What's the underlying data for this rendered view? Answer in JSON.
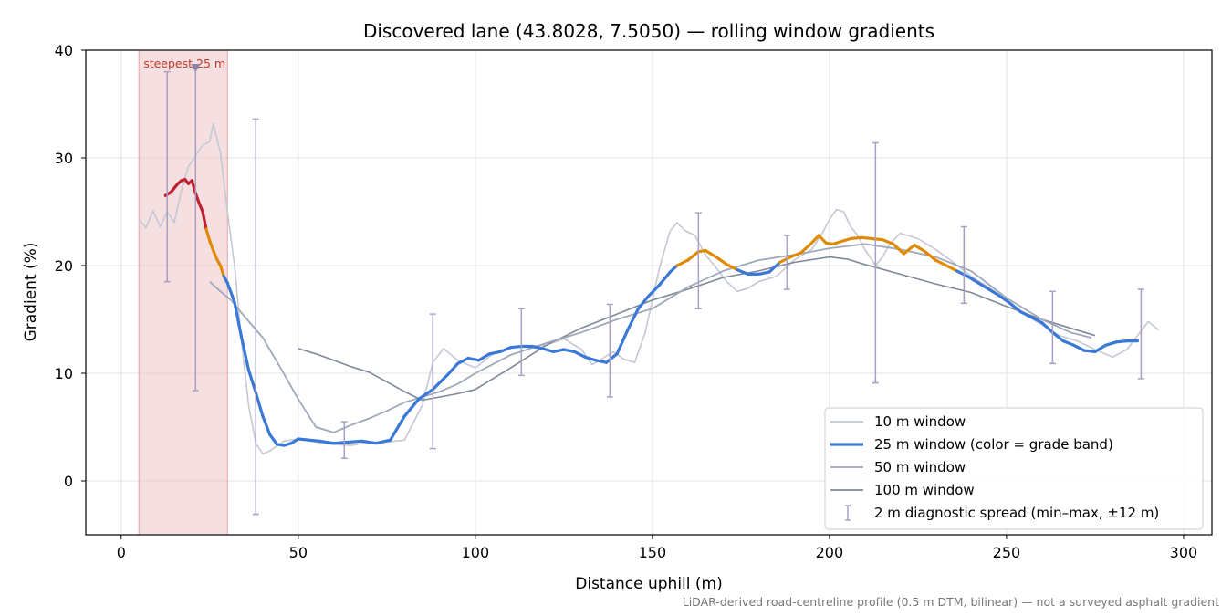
{
  "chart_data": {
    "type": "line",
    "title": "Discovered lane (43.8028, 7.5050) — rolling window gradients",
    "xlabel": "Distance uphill (m)",
    "ylabel": "Gradient (%)",
    "xlim": [
      -10,
      308
    ],
    "ylim": [
      -5,
      40
    ],
    "xticks": [
      0,
      50,
      100,
      150,
      200,
      250,
      300
    ],
    "yticks": [
      0,
      10,
      20,
      30,
      40
    ],
    "grid": true,
    "legend_position": "lower-right",
    "footnote": "LiDAR-derived road-centreline profile (0.5 m DTM, bilinear) — not a surveyed asphalt gradient",
    "annotation": {
      "label": "steepest 25 m",
      "x_start": 5,
      "x_end": 30,
      "marker_x": 21,
      "marker_y": 38.3
    },
    "grade_band_colors": {
      "steep": "#c0202f",
      "hard": "#e08a00",
      "moderate": "#3a78d8"
    },
    "legend": [
      {
        "label": "10 m window",
        "color": "#c3c9d3",
        "kind": "line"
      },
      {
        "label": "25 m window (color = grade band)",
        "color": "#3a78d8",
        "kind": "thick-line"
      },
      {
        "label": "50 m window",
        "color": "#9fa8ba",
        "kind": "line"
      },
      {
        "label": "100 m window",
        "color": "#808898",
        "kind": "line"
      },
      {
        "label": "2 m diagnostic spread (min–max, ±12 m)",
        "color": "#a7a0c4",
        "kind": "errorbar"
      }
    ],
    "series": [
      {
        "name": "10 m window",
        "color": "#c3c9d3",
        "x": [
          5,
          7,
          9,
          11,
          13,
          15,
          17,
          19,
          21,
          23,
          25,
          26,
          28,
          30,
          32,
          34,
          36,
          38,
          40,
          42,
          46,
          50,
          55,
          60,
          65,
          70,
          75,
          80,
          85,
          88,
          91,
          95,
          100,
          105,
          110,
          115,
          120,
          125,
          130,
          133,
          136,
          139,
          142,
          145,
          148,
          150,
          152,
          155,
          157,
          159,
          162,
          165,
          168,
          171,
          174,
          177,
          180,
          185,
          190,
          195,
          198,
          200,
          202,
          204,
          206,
          208,
          210,
          212,
          213,
          215,
          217,
          220,
          225,
          230,
          235,
          240,
          245,
          250,
          255,
          260,
          265,
          270,
          275,
          280,
          284,
          287,
          290,
          293
        ],
        "y": [
          24.3,
          23.5,
          25.1,
          23.6,
          25.0,
          24.0,
          27.0,
          29.2,
          30.2,
          31.2,
          31.5,
          33.2,
          30.5,
          25.0,
          20.0,
          13.0,
          7.0,
          3.5,
          2.5,
          2.8,
          3.7,
          3.9,
          3.6,
          3.4,
          3.3,
          3.6,
          3.6,
          3.8,
          7.0,
          11.0,
          12.3,
          11.2,
          10.5,
          11.8,
          12.4,
          12.5,
          12.6,
          13.2,
          12.2,
          10.8,
          11.4,
          12.0,
          11.3,
          11.0,
          13.8,
          16.8,
          19.8,
          23.2,
          24.0,
          23.3,
          22.8,
          21.0,
          19.8,
          18.5,
          17.6,
          17.9,
          18.5,
          19.0,
          20.5,
          21.5,
          23.0,
          24.3,
          25.2,
          25.0,
          23.6,
          22.8,
          21.5,
          20.5,
          20.0,
          20.8,
          22.0,
          23.0,
          22.5,
          21.5,
          20.3,
          19.0,
          18.0,
          16.8,
          15.5,
          14.5,
          13.5,
          13.0,
          12.2,
          11.5,
          12.2,
          13.5,
          14.8,
          14.0
        ]
      },
      {
        "name": "25 m window",
        "x": [
          12.5,
          14,
          16,
          17,
          18,
          19,
          20,
          21,
          22,
          23,
          24,
          25,
          26,
          27,
          28,
          29,
          30,
          32,
          34,
          36,
          38,
          40,
          42,
          44,
          46,
          48,
          50,
          53,
          56,
          60,
          64,
          68,
          72,
          76,
          80,
          84,
          88,
          92,
          95,
          98,
          101,
          104,
          107,
          110,
          113,
          116,
          119,
          122,
          125,
          128,
          131,
          134,
          137,
          140,
          143,
          146,
          149,
          152,
          155,
          157,
          160,
          163,
          165,
          168,
          171,
          174,
          177,
          180,
          183,
          186,
          189,
          192,
          195,
          197,
          199,
          201,
          203,
          206,
          209,
          212,
          215,
          218,
          221,
          224,
          227,
          230,
          233,
          236,
          239,
          242,
          245,
          248,
          251,
          254,
          257,
          260,
          263,
          266,
          269,
          272,
          275,
          278,
          281,
          284,
          287
        ],
        "y": [
          26.5,
          26.8,
          27.6,
          27.9,
          28.0,
          27.6,
          27.9,
          26.7,
          25.8,
          25.0,
          23.4,
          22.3,
          21.4,
          20.6,
          20.0,
          19.0,
          18.4,
          16.6,
          13.3,
          10.3,
          8.2,
          6.0,
          4.3,
          3.4,
          3.3,
          3.5,
          3.9,
          3.8,
          3.7,
          3.5,
          3.6,
          3.7,
          3.5,
          3.8,
          6.0,
          7.6,
          8.5,
          9.8,
          10.9,
          11.4,
          11.2,
          11.8,
          12.0,
          12.4,
          12.5,
          12.5,
          12.3,
          12.0,
          12.2,
          12.0,
          11.5,
          11.2,
          11.0,
          11.8,
          14.0,
          16.0,
          17.2,
          18.2,
          19.4,
          20.0,
          20.5,
          21.3,
          21.4,
          20.8,
          20.1,
          19.6,
          19.2,
          19.2,
          19.4,
          20.3,
          20.8,
          21.2,
          22.1,
          22.8,
          22.1,
          22.0,
          22.2,
          22.5,
          22.6,
          22.5,
          22.4,
          22.0,
          21.1,
          21.9,
          21.3,
          20.5,
          20.0,
          19.5,
          19.0,
          18.4,
          17.8,
          17.2,
          16.5,
          15.7,
          15.2,
          14.7,
          13.8,
          13.0,
          12.6,
          12.1,
          12.0,
          12.6,
          12.9,
          13.0,
          13.0
        ],
        "bands": [
          "steep",
          "steep",
          "steep",
          "steep",
          "steep",
          "steep",
          "steep",
          "steep",
          "steep",
          "steep",
          "hard",
          "hard",
          "hard",
          "hard",
          "hard",
          "moderate",
          "moderate",
          "moderate",
          "moderate",
          "moderate",
          "moderate",
          "moderate",
          "moderate",
          "moderate",
          "moderate",
          "moderate",
          "moderate",
          "moderate",
          "moderate",
          "moderate",
          "moderate",
          "moderate",
          "moderate",
          "moderate",
          "moderate",
          "moderate",
          "moderate",
          "moderate",
          "moderate",
          "moderate",
          "moderate",
          "moderate",
          "moderate",
          "moderate",
          "moderate",
          "moderate",
          "moderate",
          "moderate",
          "moderate",
          "moderate",
          "moderate",
          "moderate",
          "moderate",
          "moderate",
          "moderate",
          "moderate",
          "moderate",
          "moderate",
          "moderate",
          "hard",
          "hard",
          "hard",
          "hard",
          "hard",
          "hard",
          "moderate",
          "moderate",
          "moderate",
          "moderate",
          "hard",
          "hard",
          "hard",
          "hard",
          "hard",
          "hard",
          "hard",
          "hard",
          "hard",
          "hard",
          "hard",
          "hard",
          "hard",
          "hard",
          "hard",
          "hard",
          "hard",
          "hard",
          "moderate",
          "moderate",
          "moderate",
          "moderate",
          "moderate",
          "moderate",
          "moderate",
          "moderate",
          "moderate",
          "moderate",
          "moderate",
          "moderate",
          "moderate",
          "moderate",
          "moderate",
          "moderate",
          "moderate",
          "moderate"
        ]
      },
      {
        "name": "50 m window",
        "color": "#9fa8ba",
        "x": [
          25,
          28,
          31,
          35,
          40,
          45,
          50,
          55,
          60,
          65,
          70,
          75,
          80,
          85,
          90,
          95,
          100,
          110,
          120,
          130,
          140,
          150,
          160,
          170,
          180,
          190,
          200,
          210,
          220,
          230,
          240,
          250,
          260,
          268,
          274
        ],
        "y": [
          18.5,
          17.6,
          16.8,
          15.2,
          13.3,
          10.5,
          7.6,
          5.0,
          4.5,
          5.2,
          5.8,
          6.5,
          7.3,
          7.8,
          8.3,
          9.0,
          10.0,
          11.7,
          12.8,
          13.8,
          15.0,
          16.0,
          18.0,
          19.5,
          20.5,
          21.0,
          21.6,
          22.0,
          21.5,
          20.8,
          19.5,
          17.0,
          15.0,
          13.8,
          13.3
        ]
      },
      {
        "name": "100 m window",
        "color": "#808898",
        "x": [
          50,
          55,
          60,
          65,
          70,
          75,
          80,
          85,
          90,
          95,
          100,
          110,
          120,
          130,
          140,
          150,
          160,
          170,
          180,
          190,
          200,
          205,
          210,
          220,
          230,
          240,
          250,
          260,
          270,
          275
        ],
        "y": [
          12.3,
          11.8,
          11.2,
          10.6,
          10.1,
          9.2,
          8.3,
          7.5,
          7.8,
          8.1,
          8.5,
          10.5,
          12.6,
          14.2,
          15.5,
          16.8,
          17.8,
          18.9,
          19.5,
          20.3,
          20.8,
          20.6,
          20.1,
          19.2,
          18.3,
          17.5,
          16.2,
          15.0,
          14.0,
          13.5
        ]
      }
    ],
    "errorbars": {
      "name": "2 m diagnostic spread (min–max, ±12 m)",
      "color": "#a7a0c4",
      "x": [
        13,
        21,
        38,
        63,
        88,
        113,
        138,
        163,
        188,
        213,
        238,
        263,
        288
      ],
      "min": [
        18.5,
        8.4,
        -3.1,
        2.1,
        3.0,
        9.8,
        7.8,
        16.0,
        17.8,
        9.1,
        16.5,
        10.9,
        9.5
      ],
      "max": [
        38.0,
        38.3,
        33.6,
        5.5,
        15.5,
        16.0,
        16.4,
        24.9,
        22.8,
        31.4,
        23.6,
        17.6,
        17.8
      ]
    }
  }
}
